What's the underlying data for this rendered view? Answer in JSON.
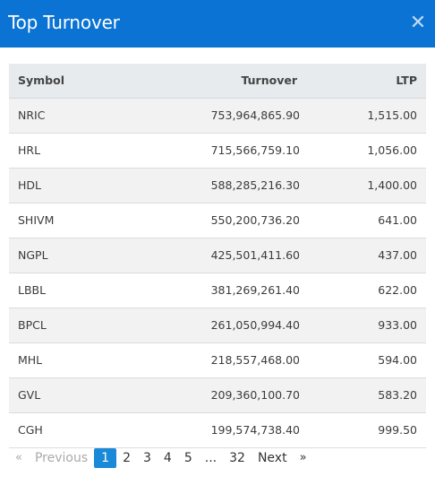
{
  "modal": {
    "title": "Top Turnover",
    "close_glyph": "✕"
  },
  "table": {
    "headers": {
      "symbol": "Symbol",
      "turnover": "Turnover",
      "ltp": "LTP"
    },
    "rows": [
      {
        "symbol": "NRIC",
        "turnover": "753,964,865.90",
        "ltp": "1,515.00"
      },
      {
        "symbol": "HRL",
        "turnover": "715,566,759.10",
        "ltp": "1,056.00"
      },
      {
        "symbol": "HDL",
        "turnover": "588,285,216.30",
        "ltp": "1,400.00"
      },
      {
        "symbol": "SHIVM",
        "turnover": "550,200,736.20",
        "ltp": "641.00"
      },
      {
        "symbol": "NGPL",
        "turnover": "425,501,411.60",
        "ltp": "437.00"
      },
      {
        "symbol": "LBBL",
        "turnover": "381,269,261.40",
        "ltp": "622.00"
      },
      {
        "symbol": "BPCL",
        "turnover": "261,050,994.40",
        "ltp": "933.00"
      },
      {
        "symbol": "MHL",
        "turnover": "218,557,468.00",
        "ltp": "594.00"
      },
      {
        "symbol": "GVL",
        "turnover": "209,360,100.70",
        "ltp": "583.20"
      },
      {
        "symbol": "CGH",
        "turnover": "199,574,738.40",
        "ltp": "999.50"
      }
    ]
  },
  "pagination": {
    "first_arrow": "«",
    "previous_label": "Previous",
    "pages": [
      "1",
      "2",
      "3",
      "4",
      "5"
    ],
    "active_page": "1",
    "ellipsis": "...",
    "last_page": "32",
    "next_label": "Next",
    "last_arrow": "»"
  },
  "colors": {
    "header_bg": "#0a73d3",
    "active_page_bg": "#1a8ad8",
    "table_head_bg": "#e8ebee",
    "stripe_bg": "#f2f2f2"
  }
}
